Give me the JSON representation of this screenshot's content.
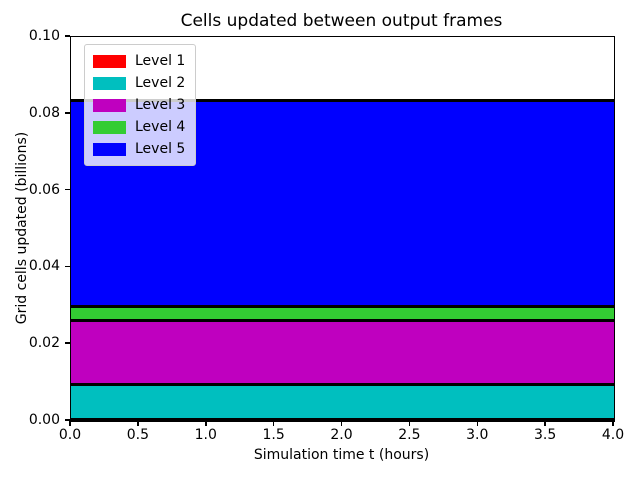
{
  "chart_data": {
    "type": "area",
    "stacked": true,
    "title": "Cells updated between output frames",
    "xlabel": "Simulation time t (hours)",
    "ylabel": "Grid cells updated (billions)",
    "xlim": [
      0.0,
      4.0
    ],
    "ylim": [
      0.0,
      0.1
    ],
    "xticks": [
      0.0,
      0.5,
      1.0,
      1.5,
      2.0,
      2.5,
      3.0,
      3.5,
      4.0
    ],
    "xtick_labels": [
      "0.0",
      "0.5",
      "1.0",
      "1.5",
      "2.0",
      "2.5",
      "3.0",
      "3.5",
      "4.0"
    ],
    "yticks": [
      0.0,
      0.02,
      0.04,
      0.06,
      0.08,
      0.1
    ],
    "ytick_labels": [
      "0.00",
      "0.02",
      "0.04",
      "0.06",
      "0.08",
      "0.10"
    ],
    "x": [
      0.0,
      4.0
    ],
    "series": [
      {
        "name": "Level 1",
        "color": "#ff0000",
        "values": [
          0.0003,
          0.0003
        ]
      },
      {
        "name": "Level 2",
        "color": "#00bfbf",
        "values": [
          0.0092,
          0.0092
        ]
      },
      {
        "name": "Level 3",
        "color": "#bf00bf",
        "values": [
          0.0166,
          0.0166
        ]
      },
      {
        "name": "Level 4",
        "color": "#33cc33",
        "values": [
          0.0037,
          0.0037
        ]
      },
      {
        "name": "Level 5",
        "color": "#0000ff",
        "values": [
          0.0536,
          0.0536
        ]
      }
    ],
    "edge_color": "#000000",
    "legend": {
      "position": "upper left",
      "entries": [
        "Level 1",
        "Level 2",
        "Level 3",
        "Level 4",
        "Level 5"
      ]
    },
    "grid": false,
    "background_color": "#ffffff"
  }
}
